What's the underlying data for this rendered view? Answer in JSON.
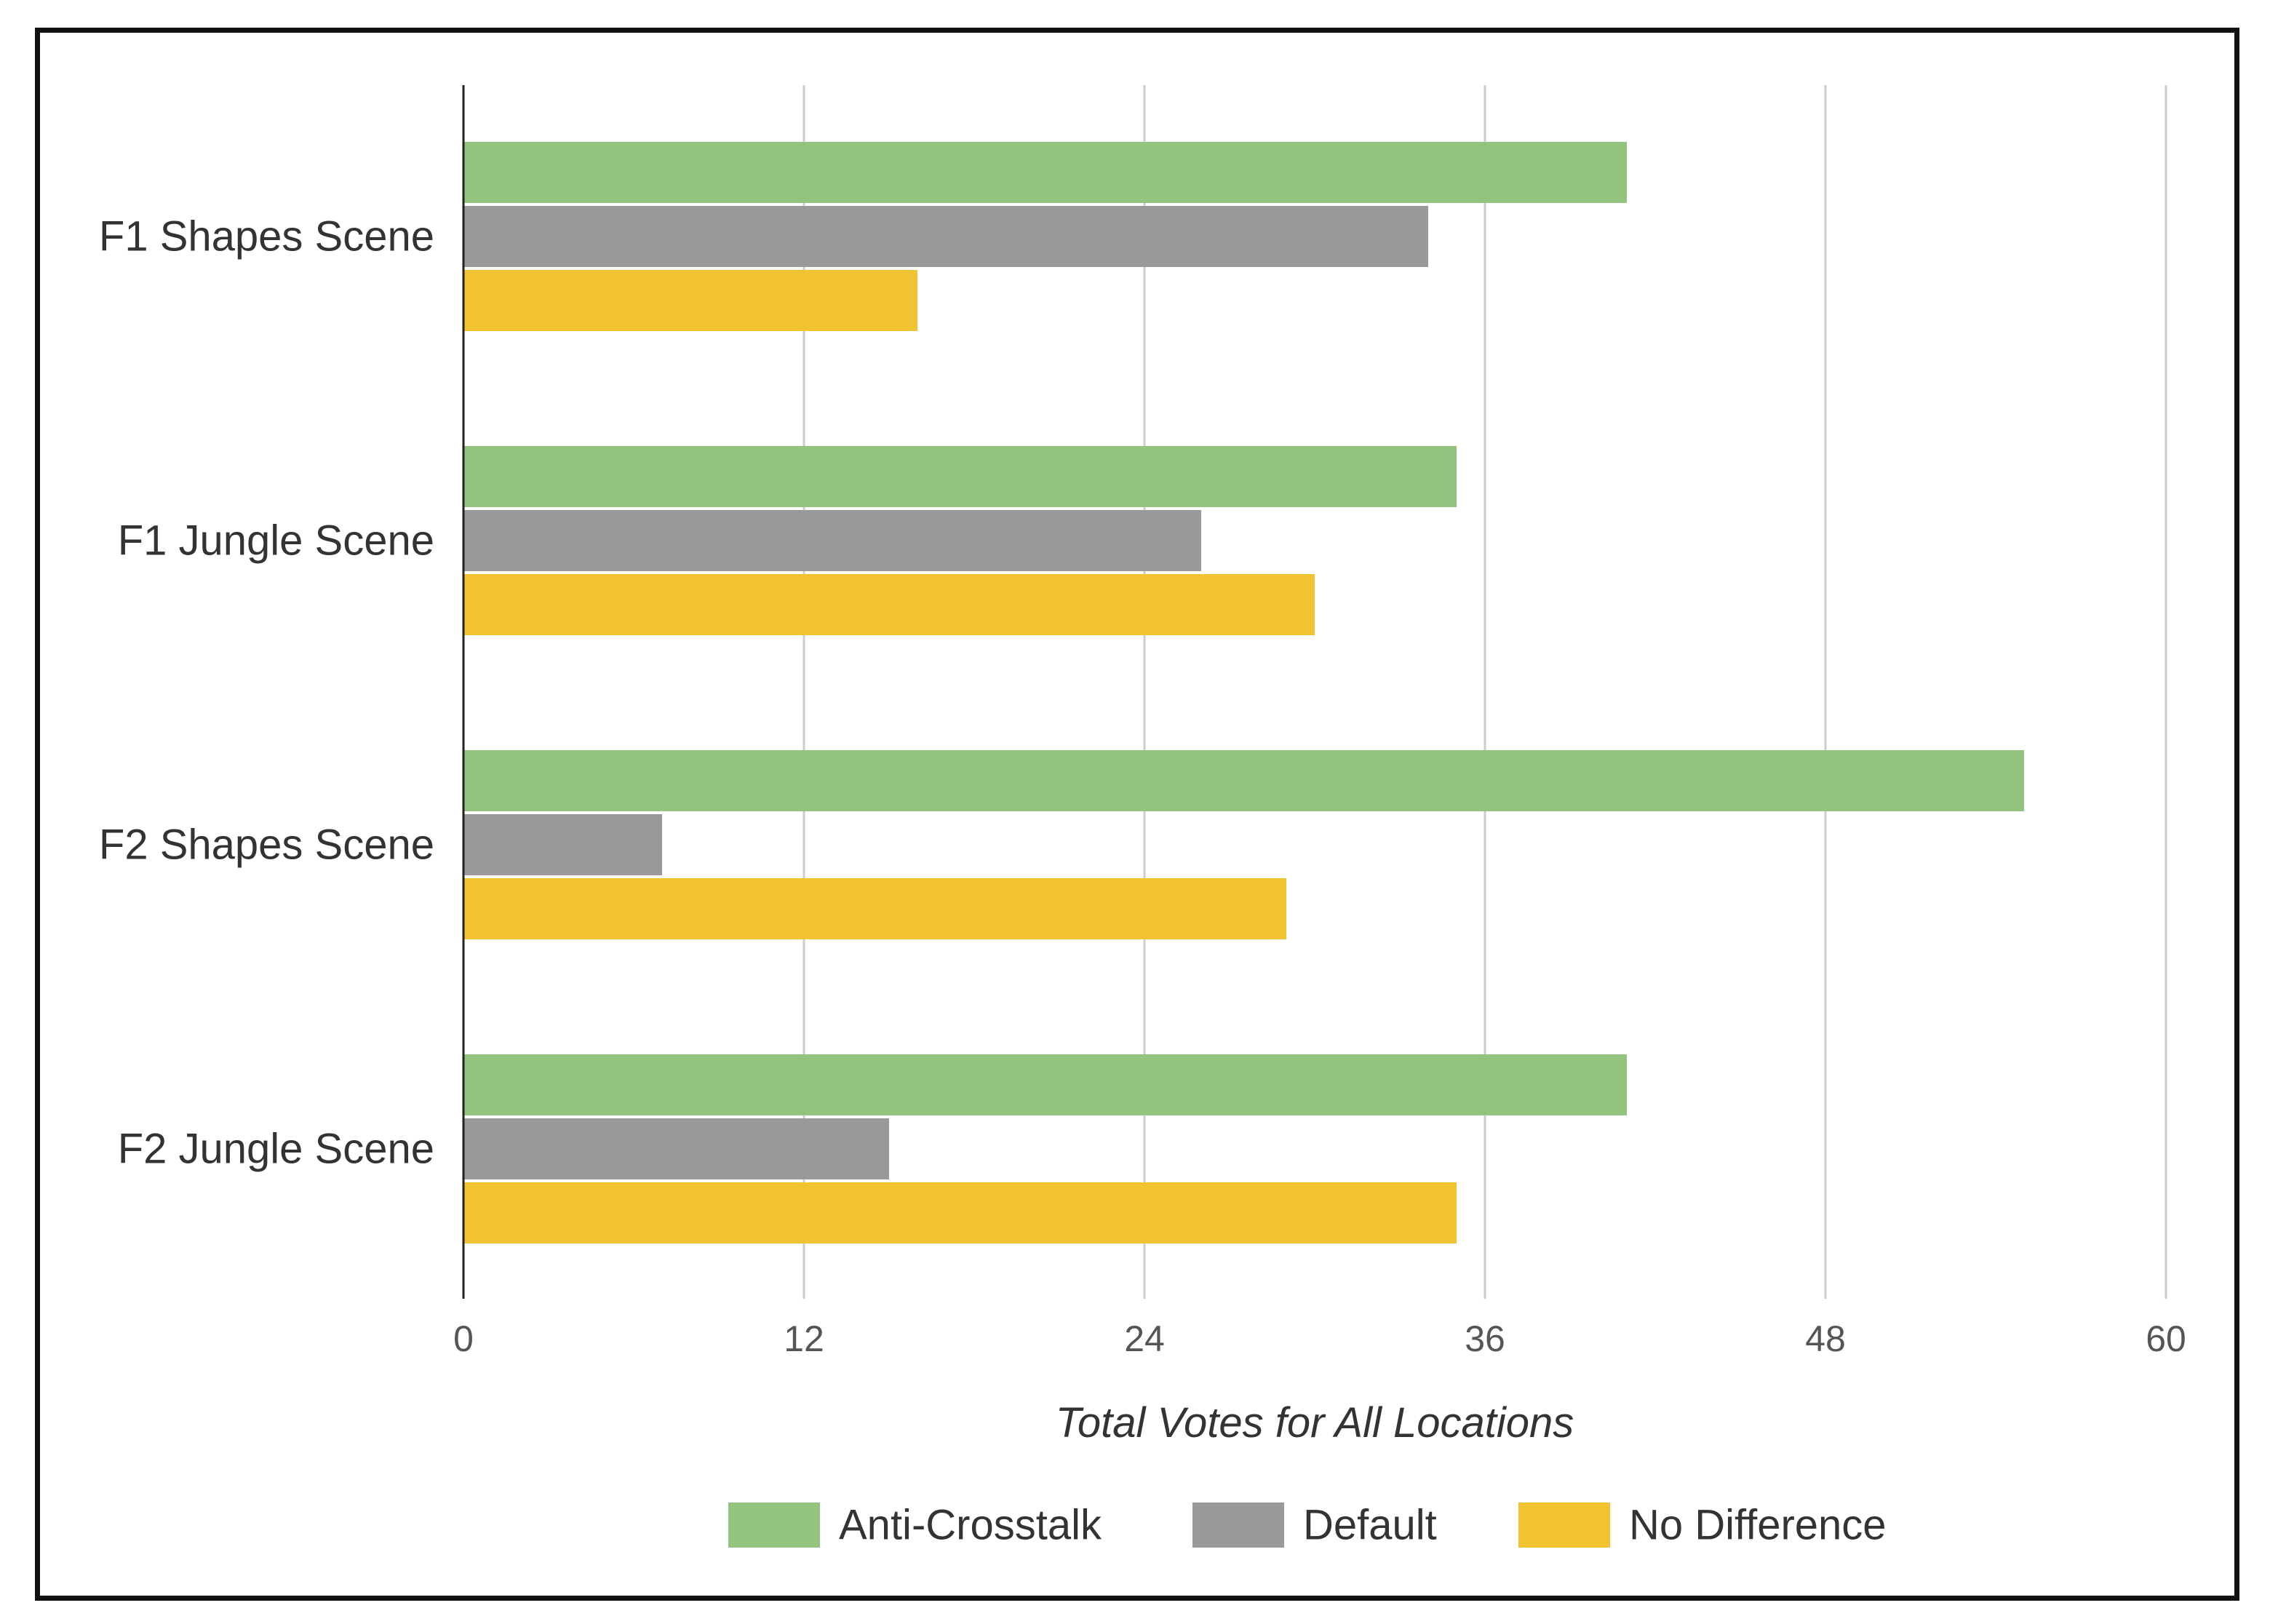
{
  "chart_data": {
    "type": "bar",
    "orientation": "horizontal",
    "title": "",
    "xlabel": "Total Votes for All Locations",
    "ylabel": "",
    "xlim": [
      0,
      60
    ],
    "xticks": [
      "0",
      "12",
      "24",
      "36",
      "48",
      "60"
    ],
    "grid": true,
    "legend_position": "bottom",
    "categories": [
      "F1 Shapes Scene",
      "F1 Jungle Scene",
      "F2 Shapes Scene",
      "F2 Jungle Scene"
    ],
    "series": [
      {
        "name": "Anti-Crosstalk",
        "color": "#93c47d",
        "values": [
          41,
          35,
          55,
          41
        ]
      },
      {
        "name": "Default",
        "color": "#999999",
        "values": [
          34,
          26,
          7,
          15
        ]
      },
      {
        "name": "No Difference",
        "color": "#f1c232",
        "values": [
          16,
          30,
          29,
          35
        ]
      }
    ]
  }
}
